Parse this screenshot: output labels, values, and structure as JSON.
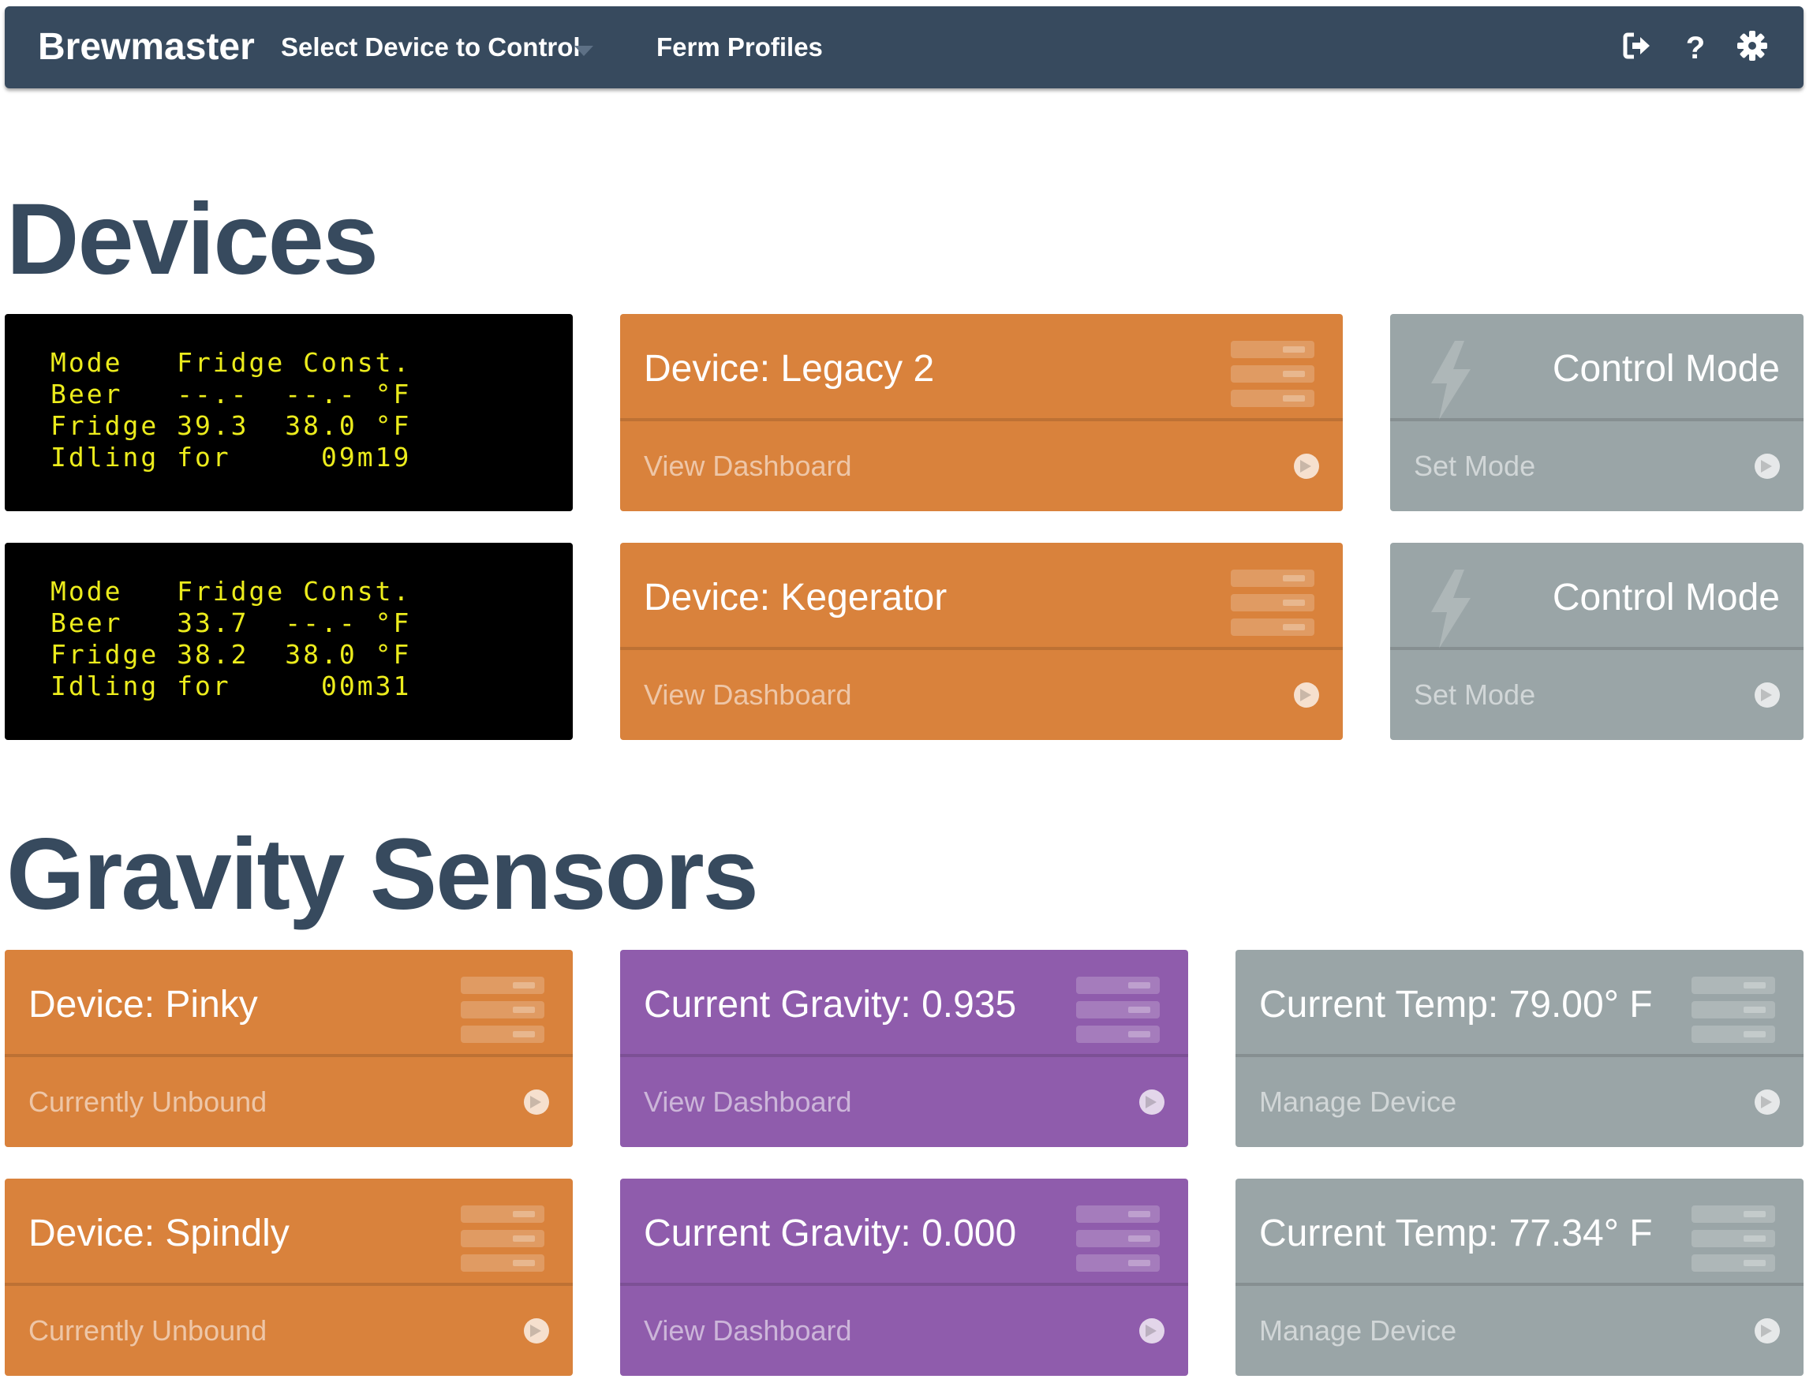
{
  "navbar": {
    "brand": "Brewmaster",
    "device_select_label": "Select Device to Control",
    "ferm_profiles_label": "Ferm Profiles",
    "icons": [
      "sign-out-icon",
      "question-icon",
      "gear-icon"
    ]
  },
  "sections": {
    "devices_title": "Devices",
    "gravity_title": "Gravity Sensors"
  },
  "devices": [
    {
      "lcd": [
        "Mode   Fridge Const.",
        "Beer   --.-  --.- °F",
        "Fridge 39.3  38.0 °F",
        "Idling for     09m19"
      ],
      "device_title": "Device: Legacy 2",
      "device_link": "View Dashboard",
      "control_title": "Control Mode",
      "control_link": "Set Mode"
    },
    {
      "lcd": [
        "Mode   Fridge Const.",
        "Beer   33.7  --.- °F",
        "Fridge 38.2  38.0 °F",
        "Idling for     00m31"
      ],
      "device_title": "Device: Kegerator",
      "device_link": "View Dashboard",
      "control_title": "Control Mode",
      "control_link": "Set Mode"
    }
  ],
  "gravity_sensors": [
    {
      "device_title": "Device: Pinky",
      "device_link": "Currently Unbound",
      "gravity_title": "Current Gravity: 0.935",
      "gravity_link": "View Dashboard",
      "temp_title": "Current Temp: 79.00° F",
      "temp_link": "Manage Device"
    },
    {
      "device_title": "Device: Spindly",
      "device_link": "Currently Unbound",
      "gravity_title": "Current Gravity: 0.000",
      "gravity_link": "View Dashboard",
      "temp_title": "Current Temp: 77.34° F",
      "temp_link": "Manage Device"
    }
  ],
  "colors": {
    "navbar": "#374a5e",
    "orange": "#d9823c",
    "purple": "#8f5cac",
    "gray": "#9aa5a7",
    "lcd_text": "#ecec1c"
  }
}
